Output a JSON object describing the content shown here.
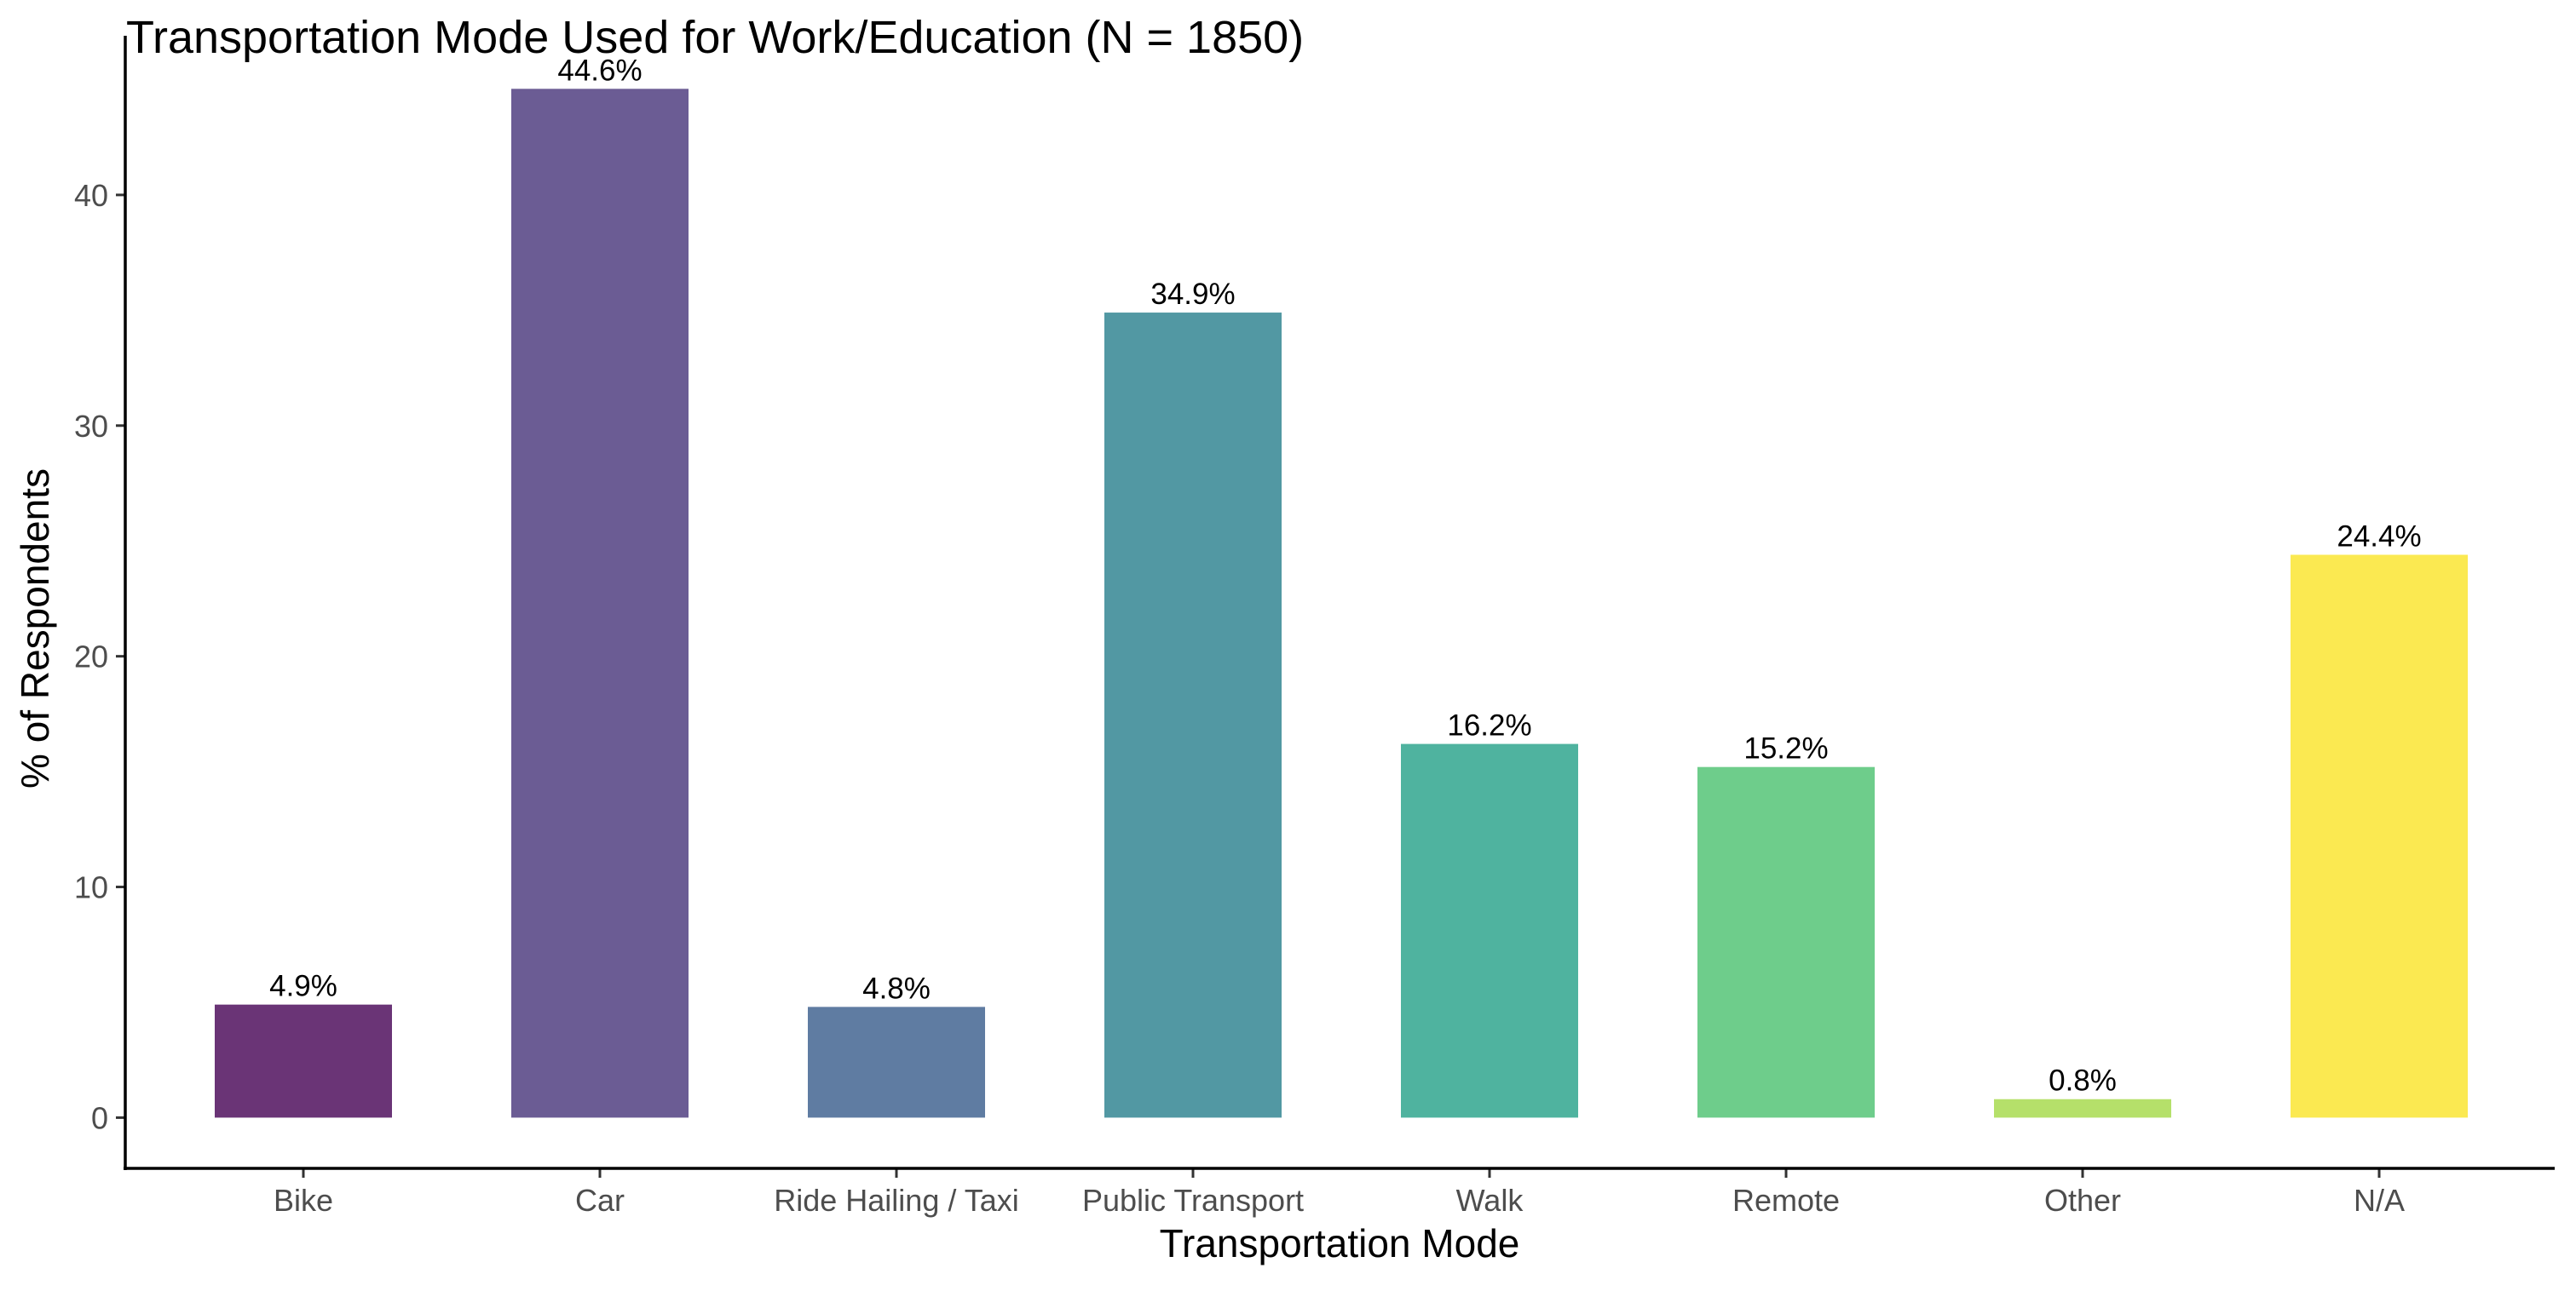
{
  "chart_data": {
    "type": "bar",
    "title": "Transportation Mode Used for Work/Education (N = 1850)",
    "xlabel": "Transportation Mode",
    "ylabel": "% of Respondents",
    "categories": [
      "Bike",
      "Car",
      "Ride Hailing / Taxi",
      "Public Transport",
      "Walk",
      "Remote",
      "Other",
      "N/A"
    ],
    "values": [
      4.9,
      44.6,
      4.8,
      34.9,
      16.2,
      15.2,
      0.8,
      24.4
    ],
    "data_labels": [
      "4.9%",
      "44.6%",
      "4.8%",
      "34.9%",
      "16.2%",
      "15.2%",
      "0.8%",
      "24.4%"
    ],
    "colors": [
      "#6a3476",
      "#6b5c94",
      "#5f7ca2",
      "#5298a3",
      "#4fb39f",
      "#6ecd8b",
      "#b5e06a",
      "#fbe951"
    ],
    "yticks": [
      0,
      10,
      20,
      30,
      40
    ],
    "ylim": [
      -2.2,
      46.9
    ],
    "grid": false,
    "legend": "none"
  }
}
